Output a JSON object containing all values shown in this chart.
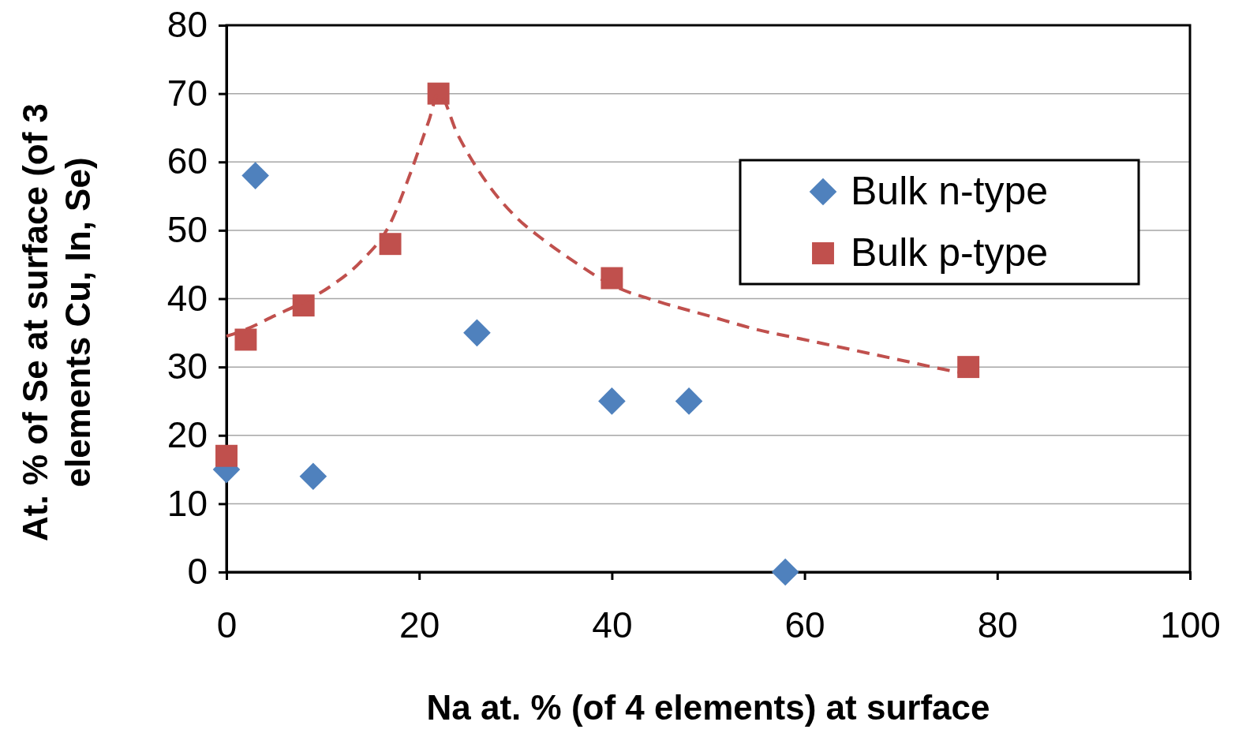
{
  "chart_data": {
    "type": "scatter",
    "xlabel": "Na at. % (of 4 elements) at surface",
    "ylabel": "At. % of Se at surface (of 3 elements Cu, In, Se)",
    "xlim": [
      0,
      100
    ],
    "xticks": [
      0,
      20,
      40,
      60,
      80,
      100
    ],
    "ylim": [
      0,
      80
    ],
    "yticks": [
      0,
      10,
      20,
      30,
      40,
      50,
      60,
      70,
      80
    ],
    "grid": "y",
    "legend": "top right",
    "series": [
      {
        "name": "Bulk n-type",
        "color": "#4f81bd",
        "marker": "diamond",
        "x": [
          0,
          3,
          9,
          26,
          40,
          48,
          58
        ],
        "values": [
          15,
          58,
          14,
          35,
          25,
          25,
          0
        ]
      },
      {
        "name": "Bulk p-type",
        "color": "#c0504d",
        "marker": "square",
        "x": [
          0,
          2,
          8,
          17,
          22,
          40,
          77
        ],
        "values": [
          17,
          34,
          39,
          48,
          70,
          43,
          30
        ]
      },
      {
        "type": "line",
        "color": "#c0504d",
        "line_style": "dashed",
        "marker": "none",
        "x": [
          0,
          2,
          5,
          8,
          11,
          14,
          17,
          19,
          21,
          22,
          24,
          27,
          30,
          33,
          36,
          40,
          45,
          50,
          55,
          60,
          65,
          70,
          75,
          77
        ],
        "values": [
          34.5,
          35.5,
          37.5,
          39.5,
          42,
          45.5,
          51,
          58,
          66,
          70,
          64,
          57,
          52,
          48.5,
          45.5,
          42,
          39.5,
          37.5,
          35.5,
          34,
          32.5,
          31,
          29.5,
          29
        ]
      }
    ]
  }
}
